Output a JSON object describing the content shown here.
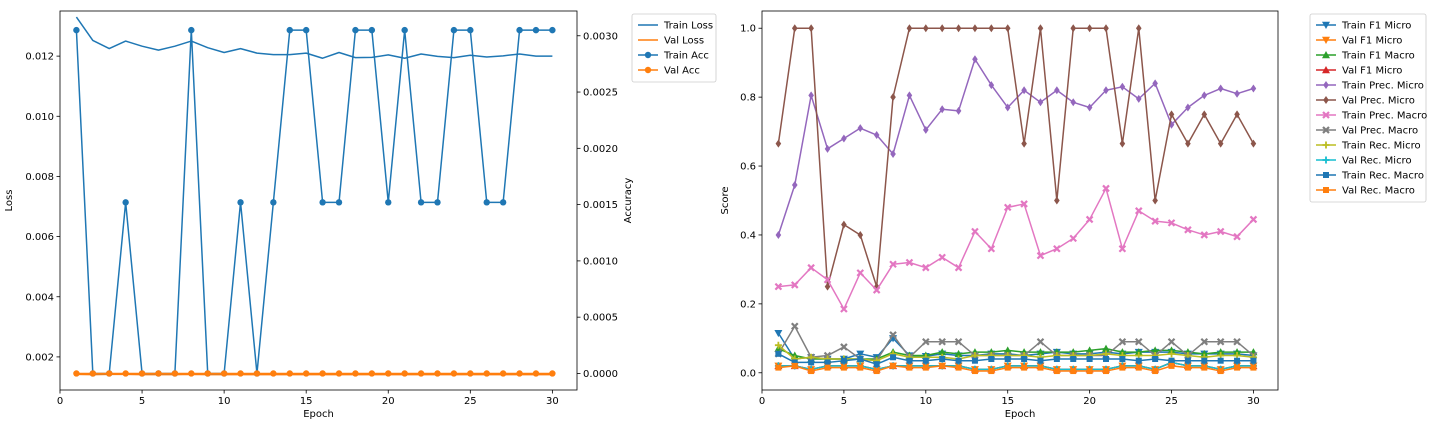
{
  "chart_data": [
    {
      "type": "line",
      "xlabel": "Epoch",
      "ylabel": "Loss",
      "y2label": "Accuracy",
      "xlim": [
        0,
        31.5
      ],
      "ylim": [
        0.0009,
        0.0135
      ],
      "y2lim": [
        -0.000147,
        0.00322
      ],
      "xticks": [
        "0",
        "5",
        "10",
        "15",
        "20",
        "25",
        "30"
      ],
      "yticks": [
        "0.002",
        "0.004",
        "0.006",
        "0.008",
        "0.010",
        "0.012"
      ],
      "y2ticks": [
        "0.0000",
        "0.0005",
        "0.0010",
        "0.0015",
        "0.0020",
        "0.0025",
        "0.0030"
      ],
      "legend_position": "outside upper right",
      "x": [
        1,
        2,
        3,
        4,
        5,
        6,
        7,
        8,
        9,
        10,
        11,
        12,
        13,
        14,
        15,
        16,
        17,
        18,
        19,
        20,
        21,
        22,
        23,
        24,
        25,
        26,
        27,
        28,
        29,
        30
      ],
      "series": [
        {
          "name": "Train Loss",
          "axis": "left",
          "color": "#1f77b4",
          "marker": "none",
          "values": [
            0.0133,
            0.01252,
            0.01225,
            0.0125,
            0.01233,
            0.0122,
            0.01233,
            0.0125,
            0.01228,
            0.01212,
            0.01225,
            0.0121,
            0.01205,
            0.01205,
            0.0121,
            0.01193,
            0.01212,
            0.01195,
            0.01196,
            0.01204,
            0.01193,
            0.01207,
            0.01199,
            0.01195,
            0.01203,
            0.01197,
            0.01201,
            0.01207,
            0.012,
            0.012
          ]
        },
        {
          "name": "Val Loss",
          "axis": "left",
          "color": "#ff7f0e",
          "marker": "none",
          "values": [
            0.00142,
            0.00141,
            0.00142,
            0.00142,
            0.00141,
            0.00141,
            0.00141,
            0.00142,
            0.00141,
            0.00141,
            0.00141,
            0.00141,
            0.00141,
            0.00141,
            0.00141,
            0.00141,
            0.00141,
            0.00141,
            0.00141,
            0.00141,
            0.00141,
            0.00141,
            0.00141,
            0.00141,
            0.00141,
            0.00141,
            0.00141,
            0.00141,
            0.00141,
            0.00141
          ]
        },
        {
          "name": "Train Acc",
          "axis": "right",
          "color": "#1f77b4",
          "marker": "circle",
          "values": [
            0.00305,
            0,
            0,
            0.00152,
            0,
            0,
            0,
            0.00305,
            0,
            0,
            0.00152,
            0,
            0.00152,
            0.00305,
            0.00305,
            0.00152,
            0.00152,
            0.00305,
            0.00305,
            0.00152,
            0.00305,
            0.00152,
            0.00152,
            0.00305,
            0.00305,
            0.00152,
            0.00152,
            0.00305,
            0.00305,
            0.00305
          ]
        },
        {
          "name": "Val Acc",
          "axis": "right",
          "color": "#ff7f0e",
          "marker": "circle",
          "values": [
            0,
            0,
            0,
            0,
            0,
            0,
            0,
            0,
            0,
            0,
            0,
            0,
            0,
            0,
            0,
            0,
            0,
            0,
            0,
            0,
            0,
            0,
            0,
            0,
            0,
            0,
            0,
            0,
            0,
            0
          ]
        }
      ]
    },
    {
      "type": "line",
      "xlabel": "Epoch",
      "ylabel": "Score",
      "xlim": [
        0,
        31.5
      ],
      "ylim": [
        -0.05,
        1.05
      ],
      "xticks": [
        "0",
        "5",
        "10",
        "15",
        "20",
        "25",
        "30"
      ],
      "yticks": [
        "0.0",
        "0.2",
        "0.4",
        "0.6",
        "0.8",
        "1.0"
      ],
      "legend_position": "outside upper right",
      "x": [
        1,
        2,
        3,
        4,
        5,
        6,
        7,
        8,
        9,
        10,
        11,
        12,
        13,
        14,
        15,
        16,
        17,
        18,
        19,
        20,
        21,
        22,
        23,
        24,
        25,
        26,
        27,
        28,
        29,
        30
      ],
      "series": [
        {
          "name": "Train F1 Micro",
          "color": "#1f77b4",
          "marker": "tri_down",
          "values": [
            0.115,
            0.04,
            0.045,
            0.04,
            0.04,
            0.055,
            0.045,
            0.1,
            0.05,
            0.048,
            0.055,
            0.05,
            0.05,
            0.055,
            0.055,
            0.05,
            0.055,
            0.06,
            0.055,
            0.055,
            0.06,
            0.055,
            0.06,
            0.06,
            0.06,
            0.055,
            0.055,
            0.055,
            0.055,
            0.05
          ]
        },
        {
          "name": "Val F1 Micro",
          "color": "#ff7f0e",
          "marker": "tri_down",
          "values": [
            0.02,
            0.02,
            0.01,
            0.02,
            0.02,
            0.02,
            0.01,
            0.02,
            0.02,
            0.02,
            0.02,
            0.02,
            0.01,
            0.01,
            0.02,
            0.02,
            0.02,
            0.01,
            0.01,
            0.01,
            0.01,
            0.02,
            0.02,
            0.01,
            0.03,
            0.02,
            0.02,
            0.01,
            0.02,
            0.02
          ]
        },
        {
          "name": "Train F1 Macro",
          "color": "#2ca02c",
          "marker": "tri_up",
          "values": [
            0.07,
            0.05,
            0.04,
            0.04,
            0.04,
            0.04,
            0.04,
            0.06,
            0.05,
            0.05,
            0.06,
            0.055,
            0.06,
            0.06,
            0.065,
            0.06,
            0.06,
            0.06,
            0.06,
            0.065,
            0.07,
            0.06,
            0.06,
            0.065,
            0.065,
            0.06,
            0.055,
            0.06,
            0.06,
            0.06
          ]
        },
        {
          "name": "Val F1 Micro",
          "color": "#d62728",
          "marker": "tri_up",
          "values": [
            0.02,
            0.02,
            0.01,
            0.02,
            0.02,
            0.02,
            0.01,
            0.02,
            0.02,
            0.02,
            0.02,
            0.02,
            0.01,
            0.01,
            0.02,
            0.02,
            0.02,
            0.01,
            0.01,
            0.01,
            0.01,
            0.02,
            0.02,
            0.01,
            0.03,
            0.02,
            0.02,
            0.01,
            0.02,
            0.02
          ]
        },
        {
          "name": "Train Prec. Micro",
          "color": "#9467bd",
          "marker": "diamond",
          "values": [
            0.4,
            0.545,
            0.805,
            0.65,
            0.68,
            0.71,
            0.69,
            0.635,
            0.805,
            0.705,
            0.765,
            0.76,
            0.91,
            0.835,
            0.77,
            0.82,
            0.785,
            0.82,
            0.785,
            0.77,
            0.82,
            0.83,
            0.795,
            0.84,
            0.72,
            0.77,
            0.805,
            0.825,
            0.81,
            0.825
          ]
        },
        {
          "name": "Val Prec. Micro",
          "color": "#8c564b",
          "marker": "diamond",
          "values": [
            0.665,
            1.0,
            1.0,
            0.25,
            0.43,
            0.4,
            0.25,
            0.8,
            1.0,
            1.0,
            1.0,
            1.0,
            1.0,
            1.0,
            1.0,
            0.665,
            1.0,
            0.5,
            1.0,
            1.0,
            1.0,
            0.665,
            1.0,
            0.5,
            0.75,
            0.665,
            0.75,
            0.665,
            0.75,
            0.665
          ]
        },
        {
          "name": "Train Prec. Macro",
          "color": "#e377c2",
          "marker": "x",
          "values": [
            0.25,
            0.255,
            0.305,
            0.27,
            0.185,
            0.29,
            0.24,
            0.315,
            0.32,
            0.305,
            0.335,
            0.305,
            0.41,
            0.36,
            0.48,
            0.49,
            0.34,
            0.36,
            0.39,
            0.445,
            0.535,
            0.36,
            0.47,
            0.44,
            0.435,
            0.415,
            0.4,
            0.41,
            0.395,
            0.445
          ]
        },
        {
          "name": "Val Prec. Macro",
          "color": "#7f7f7f",
          "marker": "x",
          "values": [
            0.055,
            0.135,
            0.045,
            0.05,
            0.075,
            0.04,
            0.035,
            0.11,
            0.045,
            0.09,
            0.09,
            0.09,
            0.05,
            0.05,
            0.05,
            0.05,
            0.09,
            0.05,
            0.05,
            0.05,
            0.05,
            0.09,
            0.09,
            0.05,
            0.09,
            0.05,
            0.09,
            0.09,
            0.09,
            0.05
          ]
        },
        {
          "name": "Train Rec. Micro",
          "color": "#bcbd22",
          "marker": "plus",
          "values": [
            0.08,
            0.04,
            0.045,
            0.04,
            0.04,
            0.04,
            0.035,
            0.055,
            0.045,
            0.045,
            0.045,
            0.04,
            0.05,
            0.05,
            0.05,
            0.05,
            0.045,
            0.05,
            0.05,
            0.05,
            0.055,
            0.05,
            0.05,
            0.05,
            0.055,
            0.05,
            0.045,
            0.05,
            0.05,
            0.045
          ]
        },
        {
          "name": "Val Rec. Micro",
          "color": "#17becf",
          "marker": "plus",
          "values": [
            0.02,
            0.02,
            0.01,
            0.02,
            0.02,
            0.02,
            0.01,
            0.02,
            0.02,
            0.02,
            0.02,
            0.02,
            0.01,
            0.01,
            0.02,
            0.02,
            0.02,
            0.01,
            0.01,
            0.01,
            0.01,
            0.02,
            0.02,
            0.01,
            0.03,
            0.02,
            0.02,
            0.01,
            0.02,
            0.02
          ]
        },
        {
          "name": "Train Rec. Macro",
          "color": "#1f77b4",
          "marker": "square",
          "values": [
            0.055,
            0.03,
            0.03,
            0.03,
            0.035,
            0.04,
            0.025,
            0.045,
            0.035,
            0.035,
            0.04,
            0.035,
            0.035,
            0.04,
            0.04,
            0.04,
            0.035,
            0.04,
            0.04,
            0.04,
            0.04,
            0.04,
            0.035,
            0.04,
            0.035,
            0.035,
            0.035,
            0.035,
            0.035,
            0.035
          ]
        },
        {
          "name": "Val Rec. Macro",
          "color": "#ff7f0e",
          "marker": "square",
          "values": [
            0.015,
            0.02,
            0.005,
            0.015,
            0.015,
            0.015,
            0.005,
            0.02,
            0.015,
            0.015,
            0.02,
            0.015,
            0.005,
            0.005,
            0.015,
            0.015,
            0.015,
            0.005,
            0.005,
            0.005,
            0.005,
            0.015,
            0.015,
            0.005,
            0.02,
            0.015,
            0.015,
            0.005,
            0.015,
            0.015
          ]
        }
      ]
    }
  ]
}
